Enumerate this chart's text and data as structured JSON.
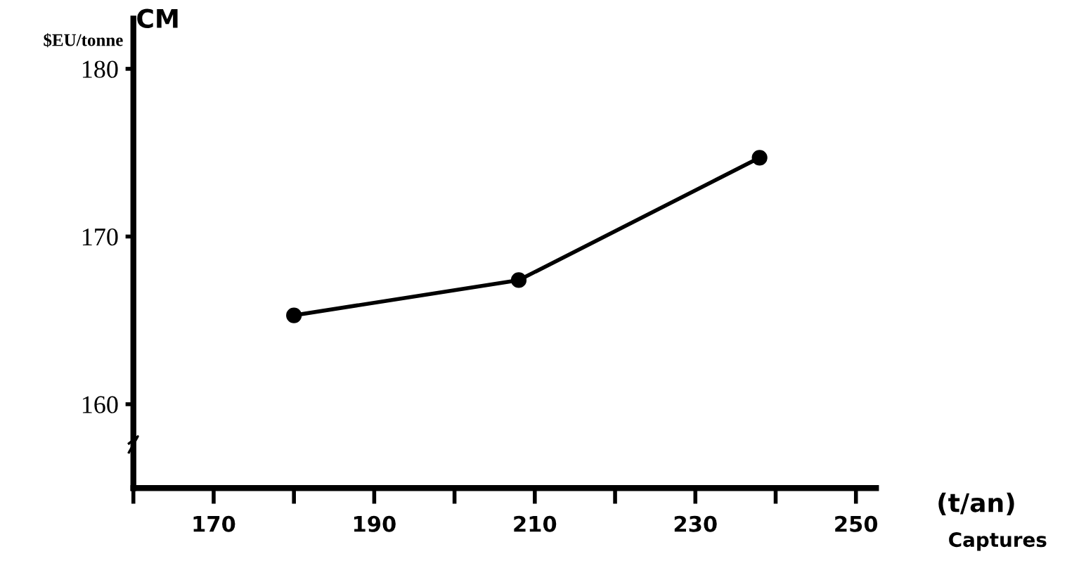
{
  "chart_data": {
    "type": "line",
    "ylabel": "CM",
    "xlabel": "(t/an)",
    "annotations": [
      "$EU/tonne",
      "Captures"
    ],
    "x": [
      180,
      208,
      238
    ],
    "series": [
      {
        "color": "#000000",
        "values": [
          165.3,
          167.4,
          174.7
        ]
      }
    ],
    "marker": "circle",
    "line_style": "solid",
    "grid": false,
    "xlim": [
      160,
      252.5
    ],
    "xticks": [
      {
        "value": 160,
        "label": null
      },
      170,
      {
        "value": 180,
        "label": null
      },
      190,
      {
        "value": 200,
        "label": null
      },
      210,
      {
        "value": 220,
        "label": null
      },
      230,
      {
        "value": 240,
        "label": null
      },
      250
    ],
    "ylim": [
      155,
      183
    ],
    "yticks": [
      160,
      170,
      180
    ]
  }
}
